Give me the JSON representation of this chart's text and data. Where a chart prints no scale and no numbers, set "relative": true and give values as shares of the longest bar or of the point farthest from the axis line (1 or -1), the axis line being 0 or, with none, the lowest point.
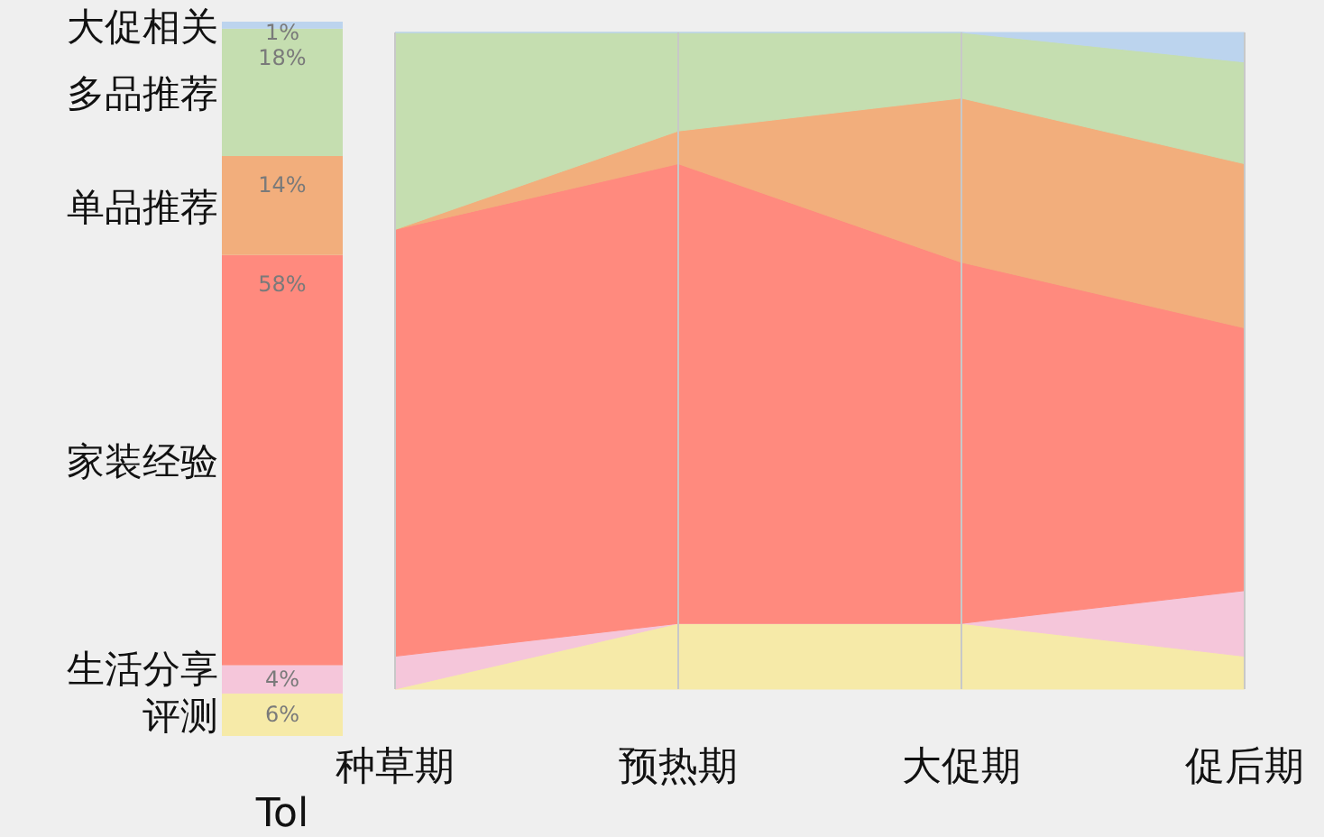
{
  "chart_data": [
    {
      "type": "bar",
      "stacked": true,
      "categories": [
        "Tol"
      ],
      "series": [
        {
          "name": "评测",
          "color": "#f6eaa8",
          "values": [
            6
          ],
          "value_labels": [
            "6%"
          ]
        },
        {
          "name": "生活分享",
          "color": "#f5c6da",
          "values": [
            4
          ],
          "value_labels": [
            "4%"
          ]
        },
        {
          "name": "家装经验",
          "color": "#ff8a7e",
          "values": [
            58
          ],
          "value_labels": [
            "58%"
          ]
        },
        {
          "name": "单品推荐",
          "color": "#f2ae7c",
          "values": [
            14
          ],
          "value_labels": [
            "14%"
          ]
        },
        {
          "name": "多品推荐",
          "color": "#c5deb0",
          "values": [
            18
          ],
          "value_labels": [
            "18%"
          ]
        },
        {
          "name": "大促相关",
          "color": "#bcd4ee",
          "values": [
            1
          ],
          "value_labels": [
            "1%"
          ]
        }
      ]
    },
    {
      "type": "area",
      "stacked": true,
      "relative": true,
      "grid": "x",
      "categories": [
        "种草期",
        "预热期",
        "大促期",
        "促后期"
      ],
      "series": [
        {
          "color": "#f6eaa8",
          "values": [
            0,
            0.1,
            0.1,
            0.05
          ]
        },
        {
          "color": "#f5c6da",
          "values": [
            0.05,
            0,
            0,
            0.1
          ]
        },
        {
          "color": "#ff8a7e",
          "values": [
            0.65,
            0.7,
            0.55,
            0.4
          ]
        },
        {
          "color": "#f2ae7c",
          "values": [
            0,
            0.05,
            0.25,
            0.25
          ]
        },
        {
          "color": "#c5deb0",
          "values": [
            0.3,
            0.15,
            0.1,
            0.155
          ]
        },
        {
          "color": "#bcd4ee",
          "values": [
            0,
            0,
            0,
            0.045
          ]
        }
      ]
    }
  ]
}
